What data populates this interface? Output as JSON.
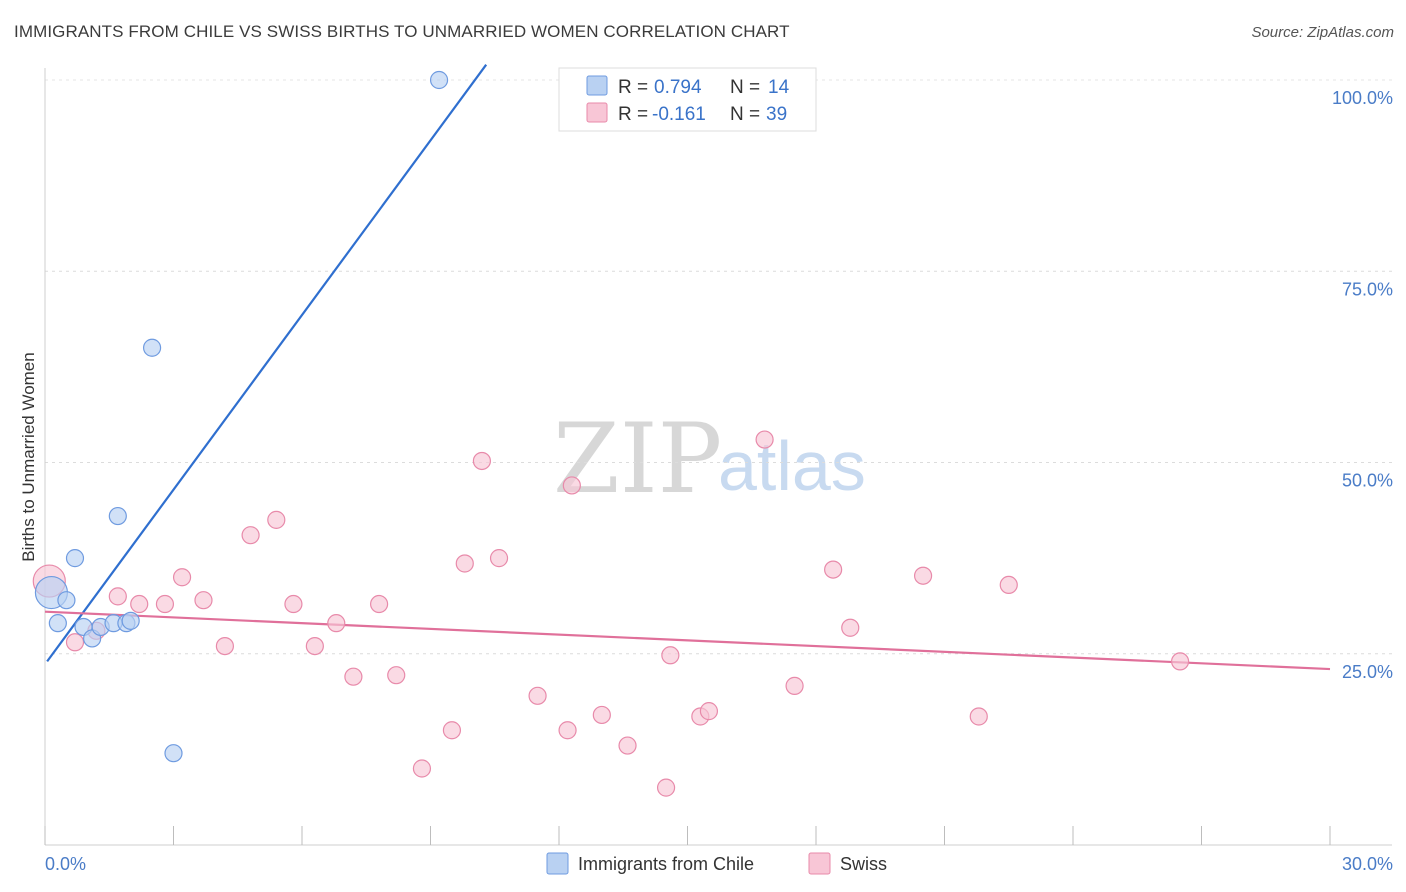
{
  "title": "IMMIGRANTS FROM CHILE VS SWISS BIRTHS TO UNMARRIED WOMEN CORRELATION CHART",
  "source": "Source: ZipAtlas.com",
  "watermark": {
    "zip": "ZIP",
    "atlas": "atlas"
  },
  "legend": {
    "r_label": "R =",
    "n_label": "N =",
    "rows": [
      {
        "series": "Immigrants from Chile",
        "r": "0.794",
        "n": "14",
        "fill": "#b9d1f2",
        "stroke": "#6f9be0"
      },
      {
        "series": "Swiss",
        "r": "-0.161",
        "n": "39",
        "fill": "#f8c6d6",
        "stroke": "#e88aaa"
      }
    ]
  },
  "chart_data": {
    "type": "scatter",
    "ylabel": "Births to Unmarried Women",
    "xlim": [
      0,
      30
    ],
    "ylim": [
      0,
      100
    ],
    "x_tick_labels": [
      "0.0%",
      "30.0%"
    ],
    "y_ticks": [
      25,
      50,
      75,
      100
    ],
    "y_tick_labels": [
      "25.0%",
      "50.0%",
      "75.0%",
      "100.0%"
    ],
    "series": [
      {
        "name": "Immigrants from Chile",
        "color": "#6f9be0",
        "fill": "#b9d1f2",
        "trend_color": "#2f6fcf",
        "trend": {
          "x1": 0.05,
          "y1": 24,
          "x2": 10.3,
          "y2": 102
        },
        "points": [
          {
            "x": 0.15,
            "y": 33,
            "size": "large"
          },
          {
            "x": 0.5,
            "y": 32
          },
          {
            "x": 0.3,
            "y": 29
          },
          {
            "x": 0.7,
            "y": 37.5
          },
          {
            "x": 0.9,
            "y": 28.5
          },
          {
            "x": 1.1,
            "y": 27
          },
          {
            "x": 1.3,
            "y": 28.5
          },
          {
            "x": 1.6,
            "y": 29
          },
          {
            "x": 1.9,
            "y": 29
          },
          {
            "x": 2.0,
            "y": 29.3
          },
          {
            "x": 1.7,
            "y": 43
          },
          {
            "x": 2.5,
            "y": 65
          },
          {
            "x": 3.0,
            "y": 12
          },
          {
            "x": 9.2,
            "y": 100
          }
        ]
      },
      {
        "name": "Swiss",
        "color": "#e88aaa",
        "fill": "#f8c6d6",
        "trend_color": "#e0709a",
        "trend": {
          "x1": 0,
          "y1": 30.5,
          "x2": 30,
          "y2": 23
        },
        "points": [
          {
            "x": 0.1,
            "y": 34.5,
            "size": "large"
          },
          {
            "x": 0.7,
            "y": 26.5
          },
          {
            "x": 1.2,
            "y": 28
          },
          {
            "x": 1.7,
            "y": 32.5
          },
          {
            "x": 2.2,
            "y": 31.5
          },
          {
            "x": 2.8,
            "y": 31.5
          },
          {
            "x": 3.2,
            "y": 35
          },
          {
            "x": 3.7,
            "y": 32
          },
          {
            "x": 4.2,
            "y": 26
          },
          {
            "x": 4.8,
            "y": 40.5
          },
          {
            "x": 5.4,
            "y": 42.5
          },
          {
            "x": 5.8,
            "y": 31.5
          },
          {
            "x": 6.3,
            "y": 26
          },
          {
            "x": 6.8,
            "y": 29
          },
          {
            "x": 7.2,
            "y": 22
          },
          {
            "x": 7.8,
            "y": 31.5
          },
          {
            "x": 8.2,
            "y": 22.2
          },
          {
            "x": 8.8,
            "y": 10
          },
          {
            "x": 9.5,
            "y": 15
          },
          {
            "x": 9.8,
            "y": 36.8
          },
          {
            "x": 10.2,
            "y": 50.2
          },
          {
            "x": 10.6,
            "y": 37.5
          },
          {
            "x": 11.5,
            "y": 19.5
          },
          {
            "x": 12.2,
            "y": 15
          },
          {
            "x": 12.3,
            "y": 47
          },
          {
            "x": 13.0,
            "y": 17
          },
          {
            "x": 13.6,
            "y": 13
          },
          {
            "x": 14.5,
            "y": 7.5
          },
          {
            "x": 14.6,
            "y": 24.8
          },
          {
            "x": 15.3,
            "y": 16.8
          },
          {
            "x": 15.5,
            "y": 17.5
          },
          {
            "x": 16.8,
            "y": 53
          },
          {
            "x": 17.5,
            "y": 20.8
          },
          {
            "x": 18.4,
            "y": 36
          },
          {
            "x": 18.8,
            "y": 28.4
          },
          {
            "x": 20.5,
            "y": 35.2
          },
          {
            "x": 21.8,
            "y": 16.8
          },
          {
            "x": 22.5,
            "y": 34
          },
          {
            "x": 26.5,
            "y": 24
          }
        ]
      }
    ]
  }
}
